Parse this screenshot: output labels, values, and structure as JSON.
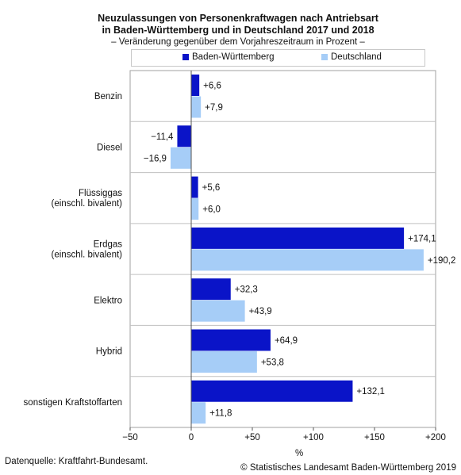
{
  "title_line1": "Neuzulassungen von Personenkraftwagen nach Antriebsart",
  "title_line2": "in Baden-Württemberg und in Deutschland 2017 und 2018",
  "subtitle": "– Veränderung gegenüber dem Vorjahreszeitraum in Prozent –",
  "source": "Datenquelle: Kraftfahrt-Bundesamt.",
  "copyright": "© Statistisches Landesamt Baden-Württemberg 2019",
  "chart_data": {
    "type": "bar",
    "orientation": "horizontal",
    "categories": [
      [
        "Benzin"
      ],
      [
        "Diesel"
      ],
      [
        "Flüssiggas",
        "(einschl. bivalent)"
      ],
      [
        "Erdgas",
        "(einschl. bivalent)"
      ],
      [
        "Elektro"
      ],
      [
        "Hybrid"
      ],
      [
        "sonstigen Kraftstoffarten"
      ]
    ],
    "series": [
      {
        "name": "Baden-Württemberg",
        "color": "#0a14c8",
        "values": [
          6.6,
          -11.4,
          5.6,
          174.1,
          32.3,
          64.9,
          132.1
        ],
        "labels": [
          "+6,6",
          "−11,4",
          "+5,6",
          "+174,1",
          "+32,3",
          "+64,9",
          "+132,1"
        ]
      },
      {
        "name": "Deutschland",
        "color": "#a6cdf7",
        "values": [
          7.9,
          -16.9,
          6.0,
          190.2,
          43.9,
          53.8,
          11.8
        ],
        "labels": [
          "+7,9",
          "−16,9",
          "+6,0",
          "+190,2",
          "+43,9",
          "+53,8",
          "+11,8"
        ]
      }
    ],
    "xlim": [
      -50,
      200
    ],
    "xticks": [
      -50,
      0,
      50,
      100,
      150,
      200
    ],
    "xtick_labels": [
      "−50",
      "0",
      "+50",
      "+100",
      "+150",
      "+200"
    ],
    "xlabel": "%",
    "legend_position": "top"
  }
}
